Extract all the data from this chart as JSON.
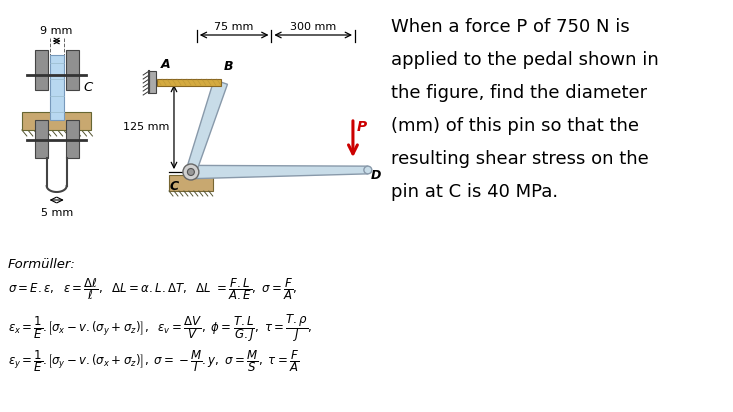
{
  "bg_color": "#ffffff",
  "problem_text_lines": [
    "When a force P of 750 N is",
    "applied to the pedal shown in",
    "the figure, find the diameter",
    "(mm) of this pin so that the",
    "resulting shear stress on the",
    "pin at C is 40 MPa."
  ],
  "formulas_label": "Formüller:",
  "color_pin_blue": "#b8d8f0",
  "color_arm": "#c8dce8",
  "color_rod": "#d4aa40",
  "color_support_tan": "#c8a870",
  "color_bracket_gray": "#909090",
  "color_P_arrow": "#cc0000",
  "dim_9mm": "9 mm",
  "dim_75mm": "75 mm",
  "dim_300mm": "300 mm",
  "dim_125mm": "125 mm",
  "dim_5mm": "5 mm",
  "label_A": "A",
  "label_B": "B",
  "label_C": "C",
  "label_D": "D",
  "label_P": "P"
}
